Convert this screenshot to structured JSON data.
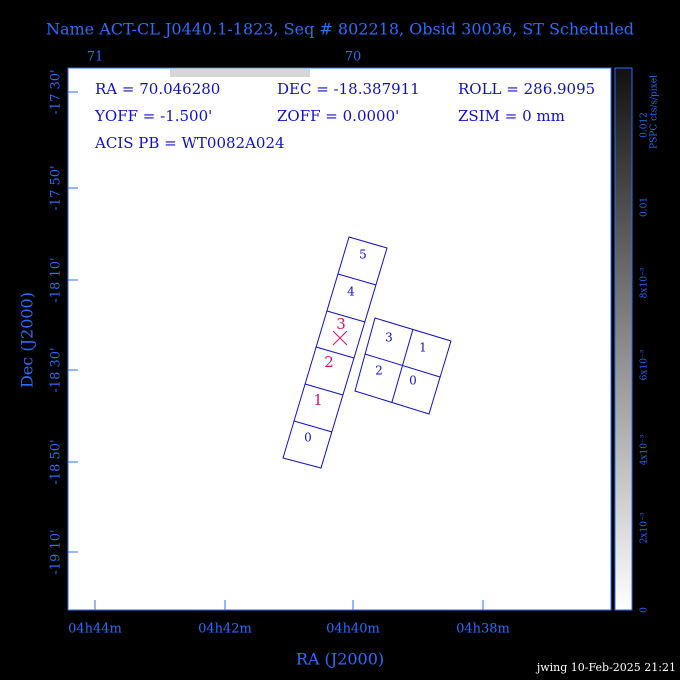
{
  "header": {
    "title": "Name ACT-CL J0440.1-1823, Seq # 802218, Obsid 30036, ST Scheduled"
  },
  "axes": {
    "top_labels": [
      "71",
      "70"
    ],
    "left_labels": [
      "-17 30'",
      "-17 50'",
      "-18 10'",
      "-18 30'",
      "-18 50'",
      "-19 10'"
    ],
    "bottom_labels": [
      "04h44m",
      "04h42m",
      "04h40m",
      "04h38m"
    ],
    "x_title": "RA (J2000)",
    "y_title": "Dec (J2000)"
  },
  "info": [
    [
      "RA = 70.046280",
      "DEC = -18.387911",
      "ROLL = 286.9095"
    ],
    [
      "YOFF = -1.500'",
      "ZOFF = 0.0000'",
      "ZSIM = 0 mm"
    ],
    [
      "ACIS PB = WT0082A024"
    ]
  ],
  "chips": {
    "acis_s": [
      "5",
      "4",
      "3",
      "2",
      "1",
      "0"
    ],
    "acis_i": [
      "3",
      "1",
      "2",
      "0"
    ]
  },
  "colorbar": {
    "title": "PSPC cts/s/pixel",
    "labels": [
      "0",
      "2x10⁻³",
      "4x10⁻³",
      "6x10⁻³",
      "8x10⁻³",
      "0.01",
      "0.012"
    ]
  },
  "footer": "jwing 10-Feb-2025 21:21"
}
